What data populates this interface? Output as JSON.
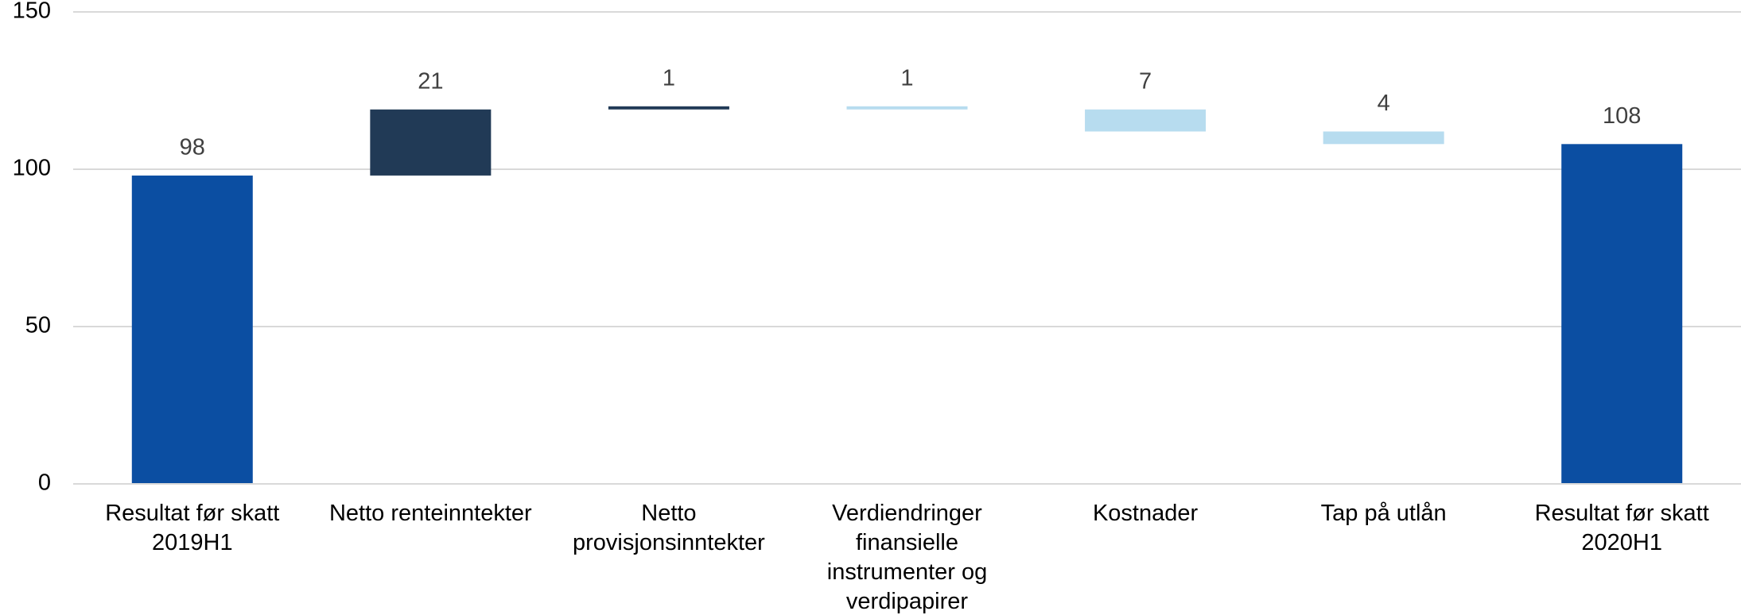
{
  "chart_data": {
    "type": "waterfall",
    "categories": [
      "Resultat før skatt 2019H1",
      "Netto renteinntekter",
      "Netto provisjonsinntekter",
      "Verdiendringer finansielle instrumenter og verdipapirer",
      "Kostnader",
      "Tap på utlån",
      "Resultat før skatt 2020H1"
    ],
    "values": [
      98,
      21,
      1,
      -1,
      -7,
      -4,
      108
    ],
    "value_labels": [
      "98",
      "21",
      "1",
      "1",
      "7",
      "4",
      "108"
    ],
    "measure": [
      "absolute",
      "relative",
      "relative",
      "relative",
      "relative",
      "relative",
      "absolute"
    ],
    "colors": [
      "#0b4ea2",
      "#213a56",
      "#213a56",
      "#b7dcef",
      "#b7dcef",
      "#b7dcef",
      "#0b4ea2"
    ],
    "ylim": [
      0,
      150
    ],
    "yticks": [
      0,
      50,
      100,
      150
    ],
    "grid": true
  }
}
